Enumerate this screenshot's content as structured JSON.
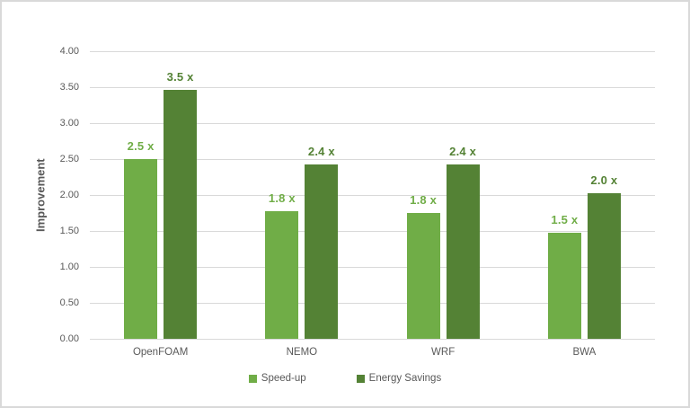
{
  "chart_data": {
    "type": "bar",
    "title": "",
    "xlabel": "",
    "ylabel": "Improvement",
    "categories": [
      "OpenFOAM",
      "NEMO",
      "WRF",
      "BWA"
    ],
    "series": [
      {
        "name": "Speed-up",
        "color": "#70AD47",
        "values": [
          2.5,
          1.77,
          1.75,
          1.47
        ],
        "labels": [
          "2.5 x",
          "1.8 x",
          "1.8 x",
          "1.5 x"
        ]
      },
      {
        "name": "Energy Savings",
        "color": "#548235",
        "values": [
          3.46,
          2.43,
          2.42,
          2.02
        ],
        "labels": [
          "3.5 x",
          "2.4 x",
          "2.4 x",
          "2.0 x"
        ]
      }
    ],
    "ylim": [
      0,
      4
    ],
    "y_ticks": [
      "0.00",
      "0.50",
      "1.00",
      "1.50",
      "2.00",
      "2.50",
      "3.00",
      "3.50",
      "4.00"
    ],
    "grid": true,
    "legend_position": "bottom"
  },
  "colors": {
    "axis_text": "#595959",
    "gridline": "#D9D9D9",
    "frame_border": "#D9D9D9",
    "background": "#FFFFFF"
  }
}
